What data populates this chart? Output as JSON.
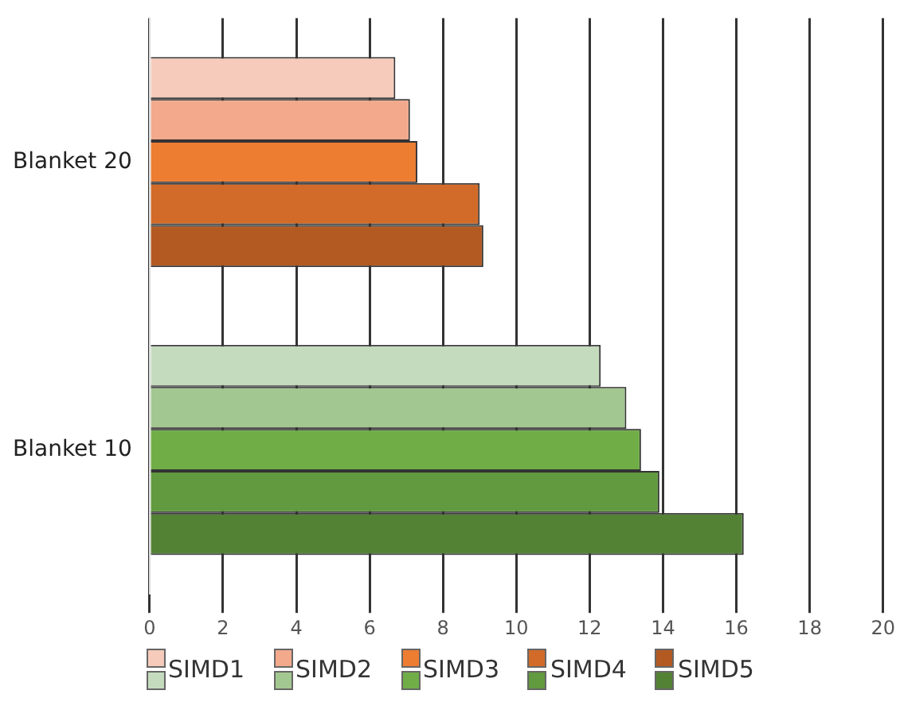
{
  "chart_data": {
    "type": "bar",
    "orientation": "horizontal",
    "categories": [
      "Blanket 20",
      "Blanket 10"
    ],
    "series": [
      {
        "name": "SIMD1",
        "colors": [
          "#f6cbbb",
          "#c5dbbe"
        ],
        "values": [
          6.7,
          12.3
        ]
      },
      {
        "name": "SIMD2",
        "colors": [
          "#f2a98c",
          "#a3c790"
        ],
        "values": [
          7.1,
          13.0
        ]
      },
      {
        "name": "SIMD3",
        "colors": [
          "#ed7d31",
          "#70ad47"
        ],
        "values": [
          7.3,
          13.4
        ]
      },
      {
        "name": "SIMD4",
        "colors": [
          "#d26b2a",
          "#619a3f"
        ],
        "values": [
          9.0,
          13.9
        ]
      },
      {
        "name": "SIMD5",
        "colors": [
          "#b35a22",
          "#548235"
        ],
        "values": [
          9.1,
          16.2
        ]
      }
    ],
    "xlim": [
      0,
      20
    ],
    "xticks": [
      0,
      2,
      4,
      6,
      8,
      10,
      12,
      14,
      16,
      18,
      20
    ],
    "grid": "x",
    "legend": "bottom"
  }
}
